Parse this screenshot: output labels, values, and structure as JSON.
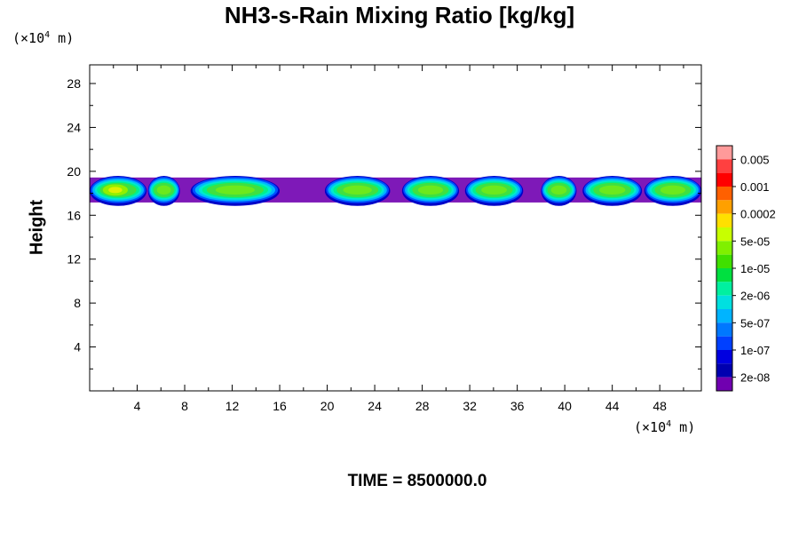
{
  "chart_data": {
    "type": "heatmap",
    "title": "NH3-s-Rain Mixing Ratio [kg/kg]",
    "xlabel": "",
    "ylabel": "Height",
    "x_unit": "(×10⁴ m)",
    "y_unit": "(×10⁴ m)",
    "xlim": [
      0,
      51.5
    ],
    "ylim": [
      0,
      29.7
    ],
    "x_ticks": [
      4,
      8,
      12,
      16,
      20,
      24,
      28,
      32,
      36,
      40,
      44,
      48
    ],
    "y_ticks": [
      4,
      8,
      12,
      16,
      20,
      24,
      28
    ],
    "colorbar": {
      "labels": [
        "0.005",
        "0.001",
        "0.0002",
        "5e-05",
        "1e-05",
        "2e-06",
        "5e-07",
        "1e-07",
        "2e-08"
      ],
      "colors": [
        "#ff9a9a",
        "#ff4040",
        "#ff0000",
        "#ff6000",
        "#ffa000",
        "#ffe000",
        "#c8ff00",
        "#80f000",
        "#40e000",
        "#00e040",
        "#00f0a0",
        "#00e0e0",
        "#00b4ff",
        "#0078ff",
        "#0040ff",
        "#0000e0",
        "#0000b0",
        "#7000b0"
      ]
    },
    "layer": {
      "height_range": [
        17,
        19.6
      ],
      "cells": [
        {
          "x": [
            0.0,
            4.8
          ],
          "peak": "5e-05"
        },
        {
          "x": [
            4.9,
            7.6
          ],
          "peak": "1e-05"
        },
        {
          "x": [
            8.5,
            16.0
          ],
          "peak": "1e-05"
        },
        {
          "x": [
            19.8,
            25.3
          ],
          "peak": "1e-05"
        },
        {
          "x": [
            26.3,
            31.1
          ],
          "peak": "1e-05"
        },
        {
          "x": [
            31.6,
            36.5
          ],
          "peak": "1e-05"
        },
        {
          "x": [
            38.0,
            41.0
          ],
          "peak": "1e-05"
        },
        {
          "x": [
            41.5,
            46.5
          ],
          "peak": "1e-05"
        },
        {
          "x": [
            46.7,
            51.5
          ],
          "peak": "1e-05"
        }
      ]
    },
    "time_label": "TIME = 8500000.0"
  }
}
